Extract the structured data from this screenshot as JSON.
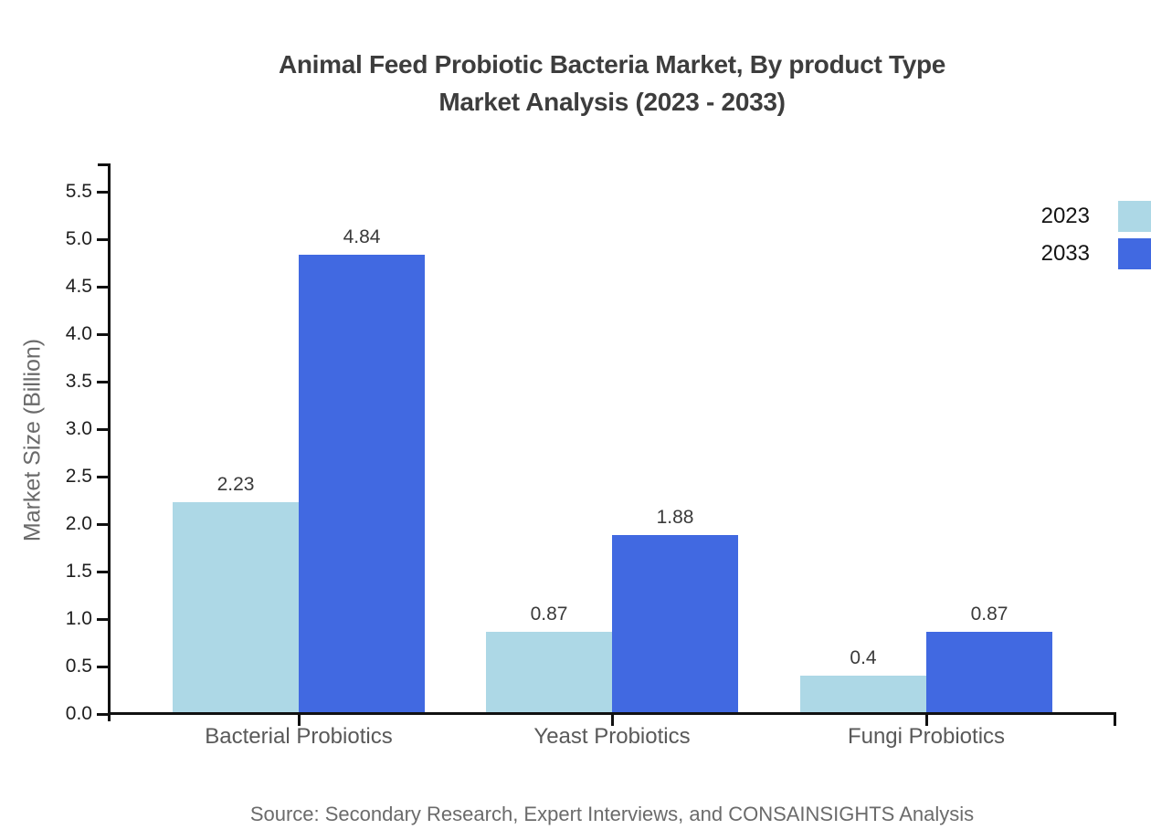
{
  "title": {
    "line1": "Animal Feed Probiotic Bacteria Market, By product Type",
    "line2": "Market Analysis (2023 - 2033)"
  },
  "chart_data": {
    "type": "bar",
    "title": "Animal Feed Probiotic Bacteria Market, By product Type Market Analysis (2023 - 2033)",
    "categories": [
      "Bacterial Probiotics",
      "Yeast Probiotics",
      "Fungi Probiotics"
    ],
    "series": [
      {
        "name": "2023",
        "color": "#ADD8E6",
        "values": [
          2.23,
          0.87,
          0.4
        ]
      },
      {
        "name": "2033",
        "color": "#4169E1",
        "values": [
          4.84,
          1.88,
          0.87
        ]
      }
    ],
    "value_labels": [
      [
        "2.23",
        "0.87",
        "0.4"
      ],
      [
        "4.84",
        "1.88",
        "0.87"
      ]
    ],
    "xlabel": "",
    "ylabel": "Market Size (Billion)",
    "ytick_labels": [
      "0.0",
      "0.5",
      "1.0",
      "1.5",
      "2.0",
      "2.5",
      "3.0",
      "3.5",
      "4.0",
      "4.5",
      "5.0",
      "5.5"
    ],
    "ylim": [
      0,
      5.8
    ],
    "grid": false,
    "legend_position": "top-right"
  },
  "source_note": "Source: Secondary Research, Expert Interviews, and CONSAINSIGHTS Analysis",
  "colors": {
    "series_2023": "#ADD8E6",
    "series_2033": "#4169E1",
    "axis": "#111111",
    "title_text": "#3d3d3d",
    "muted_text": "#6b6b6b"
  }
}
